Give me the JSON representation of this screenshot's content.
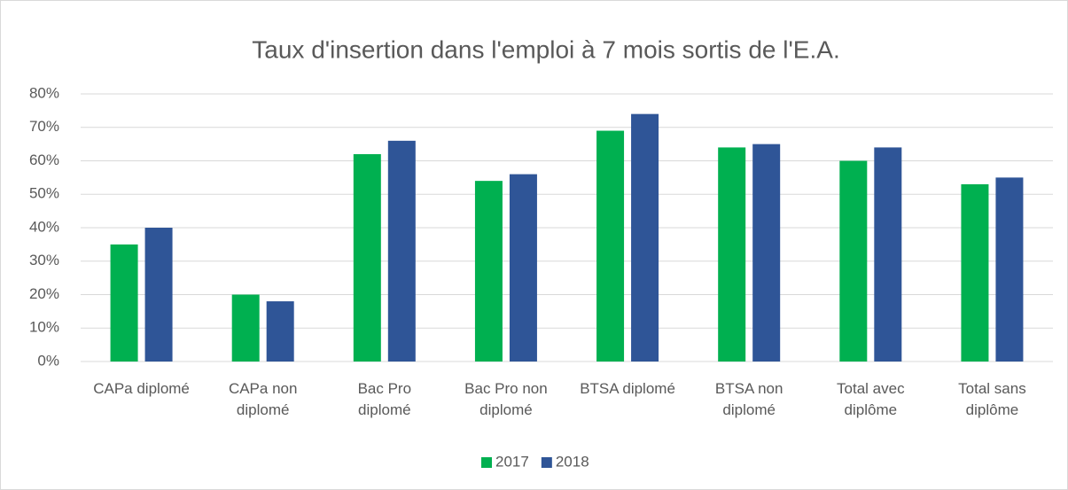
{
  "chart_data": {
    "type": "bar",
    "title": "Taux d'insertion dans l'emploi à 7 mois sortis de l'E.A.",
    "categories": [
      "CAPa diplomé",
      "CAPa non diplomé",
      "Bac Pro diplomé",
      "Bac Pro non diplomé",
      "BTSA diplomé",
      "BTSA non diplomé",
      "Total avec diplôme",
      "Total sans diplôme"
    ],
    "series": [
      {
        "name": "2017",
        "color": "#00b050",
        "values": [
          35,
          20,
          62,
          54,
          69,
          64,
          60,
          53
        ]
      },
      {
        "name": "2018",
        "color": "#2f5597",
        "values": [
          40,
          18,
          66,
          56,
          74,
          65,
          64,
          55
        ]
      }
    ],
    "ylim": [
      0,
      80
    ],
    "yticks": [
      {
        "value": 0,
        "label": "0%"
      },
      {
        "value": 10,
        "label": "10%"
      },
      {
        "value": 20,
        "label": "20%"
      },
      {
        "value": 30,
        "label": "30%"
      },
      {
        "value": 40,
        "label": "40%"
      },
      {
        "value": 50,
        "label": "50%"
      },
      {
        "value": 60,
        "label": "60%"
      },
      {
        "value": 70,
        "label": "70%"
      },
      {
        "value": 80,
        "label": "80%"
      }
    ],
    "grid": true,
    "legend": "bottom"
  }
}
